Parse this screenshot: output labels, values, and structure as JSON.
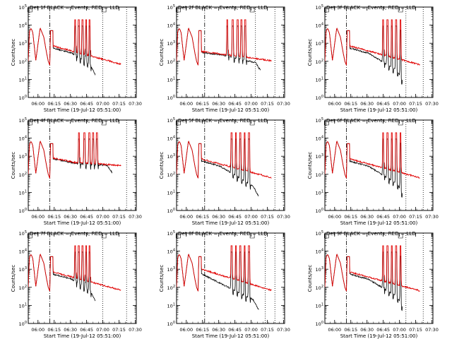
{
  "figure": {
    "shared": {
      "ylabel": "Counts/sec",
      "xlabel": "Start Time (19-Jul-12 05:51:00)",
      "xticks": [
        "06:00",
        "06:15",
        "06:30",
        "06:45",
        "07:00",
        "07:15",
        "07:30"
      ],
      "ymin_exp": 0,
      "ymax_exp": 5,
      "yscale": "log"
    }
  },
  "chart_data": [
    {
      "type": "line",
      "title": "Det 1f BLACK = Events, RED = LLD",
      "pattern": "A",
      "peaks": [
        43.5,
        46.8,
        50.3,
        53.5,
        56.8
      ],
      "black_end": 62,
      "red_end": 86,
      "dash_x": 20,
      "dot_x": 69,
      "series": [
        {
          "name": "BLACK = Events",
          "color": "#000000"
        },
        {
          "name": "RED = LLD",
          "color": "#e00000"
        }
      ]
    },
    {
      "type": "line",
      "title": "Det 2f BLACK = Events, RED = LLD",
      "pattern": "B",
      "peaks": [
        47,
        52,
        56.5,
        60,
        63.5
      ],
      "black_end": 78,
      "red_end": 88,
      "dash_x": 26,
      "dot_x": 73,
      "series": [
        {
          "name": "BLACK = Events",
          "color": "#000000"
        },
        {
          "name": "RED = LLD",
          "color": "#e00000"
        }
      ]
    },
    {
      "type": "line",
      "title": "Det 3f BLACK = Events, RED = LLD",
      "pattern": "A",
      "peaks": [
        54,
        58,
        62,
        66,
        70
      ],
      "black_end": 72,
      "red_end": 88,
      "dash_x": 20,
      "dot_x": 75,
      "series": [
        {
          "name": "BLACK = Events",
          "color": "#000000"
        },
        {
          "name": "RED = LLD",
          "color": "#e00000"
        }
      ]
    },
    {
      "type": "line",
      "title": "Det 4f BLACK = Events, RED = LLD",
      "pattern": "C",
      "peaks": [
        47,
        52,
        56.5,
        60,
        63.5
      ],
      "black_end": 78,
      "red_end": 86,
      "dash_x": 20,
      "dot_x": null,
      "series": [
        {
          "name": "BLACK = Events",
          "color": "#000000"
        },
        {
          "name": "RED = LLD",
          "color": "#e00000"
        }
      ]
    },
    {
      "type": "line",
      "title": "Det 5f BLACK = Events, RED = LLD",
      "pattern": "A",
      "peaks": [
        51,
        55,
        59,
        63,
        67
      ],
      "black_end": 76,
      "red_end": 88,
      "dash_x": 26,
      "dot_x": null,
      "series": [
        {
          "name": "BLACK = Events",
          "color": "#000000"
        },
        {
          "name": "RED = LLD",
          "color": "#e00000"
        }
      ]
    },
    {
      "type": "line",
      "title": "Det 6f BLACK = Events, RED = LLD",
      "pattern": "A",
      "peaks": [
        54,
        58,
        62,
        66,
        70
      ],
      "black_end": 72,
      "red_end": 88,
      "dash_x": 20,
      "dot_x": 75,
      "series": [
        {
          "name": "BLACK = Events",
          "color": "#000000"
        },
        {
          "name": "RED = LLD",
          "color": "#e00000"
        }
      ]
    },
    {
      "type": "line",
      "title": "Det 7f BLACK = Events, RED = LLD",
      "pattern": "A",
      "peaks": [
        43.5,
        46.8,
        50.3,
        53.5,
        56.8
      ],
      "black_end": 62,
      "red_end": 86,
      "dash_x": 20,
      "dot_x": 69,
      "series": [
        {
          "name": "BLACK = Events",
          "color": "#000000"
        },
        {
          "name": "RED = LLD",
          "color": "#e00000"
        }
      ]
    },
    {
      "type": "line",
      "title": "Det 8f BLACK = Events, RED = LLD",
      "pattern": "D",
      "peaks": [
        51,
        55,
        59,
        63,
        67
      ],
      "black_end": 76,
      "red_end": 88,
      "dash_x": 26,
      "dot_x": 82,
      "series": [
        {
          "name": "BLACK = Events",
          "color": "#000000"
        },
        {
          "name": "RED = LLD",
          "color": "#e00000"
        }
      ]
    },
    {
      "type": "line",
      "title": "Det 9f BLACK = Events, RED = LLD",
      "pattern": "A",
      "peaks": [
        54,
        58,
        62,
        66,
        70
      ],
      "black_end": 72,
      "red_end": 88,
      "dash_x": 20,
      "dot_x": 75,
      "series": [
        {
          "name": "BLACK = Events",
          "color": "#000000"
        },
        {
          "name": "RED = LLD",
          "color": "#e00000"
        }
      ]
    }
  ]
}
